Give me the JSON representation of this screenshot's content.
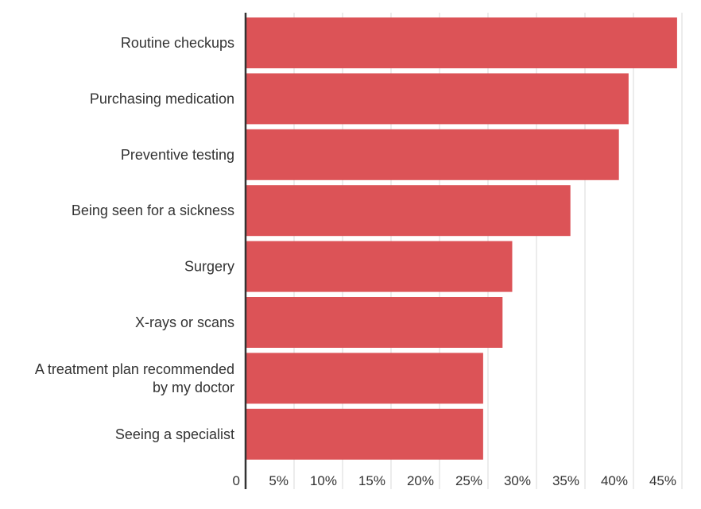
{
  "chart_data": {
    "type": "bar",
    "orientation": "horizontal",
    "categories": [
      "Routine checkups",
      "Purchasing medication",
      "Preventive testing",
      "Being seen for a sickness",
      "Surgery",
      "X-rays or scans",
      "A treatment plan recommended by my doctor",
      "Seeing a specialist"
    ],
    "category_lines": [
      [
        "Routine checkups"
      ],
      [
        "Purchasing medication"
      ],
      [
        "Preventive testing"
      ],
      [
        "Being seen for a sickness"
      ],
      [
        "Surgery"
      ],
      [
        "X-rays or scans"
      ],
      [
        "A treatment plan recommended",
        "by my doctor"
      ],
      [
        "Seeing a specialist"
      ]
    ],
    "values": [
      44.5,
      39.5,
      38.5,
      33.5,
      27.5,
      26.5,
      24.5,
      24.5
    ],
    "xlim": [
      0,
      47
    ],
    "xticks": [
      0,
      5,
      10,
      15,
      20,
      25,
      30,
      35,
      40,
      45
    ],
    "xtick_labels": [
      "0",
      "5%",
      "10%",
      "15%",
      "20%",
      "25%",
      "30%",
      "35%",
      "40%",
      "45%"
    ],
    "grid": true,
    "bar_color": "#dc5357",
    "grid_color": "#d9d9d9",
    "axis_color": "#333333",
    "title": "",
    "xlabel": "",
    "ylabel": ""
  }
}
